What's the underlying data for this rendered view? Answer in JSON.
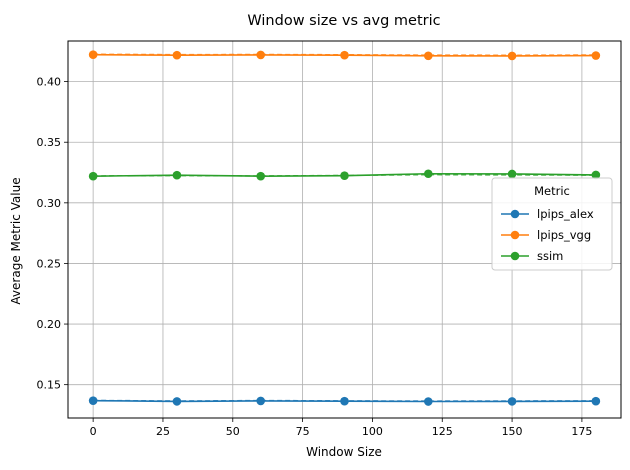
{
  "chart_data": {
    "type": "line",
    "title": "Window size vs avg metric",
    "xlabel": "Window Size",
    "ylabel": "Average Metric Value",
    "xlim": [
      -9,
      189
    ],
    "ylim": [
      0.1225,
      0.4335
    ],
    "xticks": [
      0,
      25,
      50,
      75,
      100,
      125,
      150,
      175
    ],
    "yticks": [
      0.15,
      0.2,
      0.25,
      0.3,
      0.35,
      0.4
    ],
    "xtick_labels": [
      "0",
      "25",
      "50",
      "75",
      "100",
      "125",
      "150",
      "175"
    ],
    "ytick_labels": [
      "0.15",
      "0.20",
      "0.25",
      "0.30",
      "0.35",
      "0.40"
    ],
    "grid": true,
    "legend": {
      "title": "Metric",
      "placement": "center-right"
    },
    "x": [
      0,
      30,
      60,
      90,
      120,
      150,
      180
    ],
    "series": [
      {
        "name": "lpips_alex",
        "color": "#1f77b4",
        "marker": "circle",
        "values": [
          0.1368,
          0.1362,
          0.1366,
          0.1364,
          0.1361,
          0.1362,
          0.1364
        ],
        "secondary_dashed": [
          0.137,
          0.1366,
          0.1369,
          0.1367,
          0.1365,
          0.1366,
          0.1367
        ]
      },
      {
        "name": "lpips_vgg",
        "color": "#ff7f0e",
        "marker": "circle",
        "values": [
          0.4222,
          0.4218,
          0.422,
          0.4218,
          0.4213,
          0.4212,
          0.4215
        ],
        "secondary_dashed": [
          0.4226,
          0.4223,
          0.4224,
          0.4222,
          0.4219,
          0.4218,
          0.422
        ]
      },
      {
        "name": "ssim",
        "color": "#2ca02c",
        "marker": "circle",
        "values": [
          0.322,
          0.3228,
          0.322,
          0.3224,
          0.324,
          0.3238,
          0.323
        ],
        "secondary_dashed": [
          0.3222,
          0.3224,
          0.3222,
          0.3226,
          0.3232,
          0.323,
          0.3228
        ]
      }
    ]
  }
}
